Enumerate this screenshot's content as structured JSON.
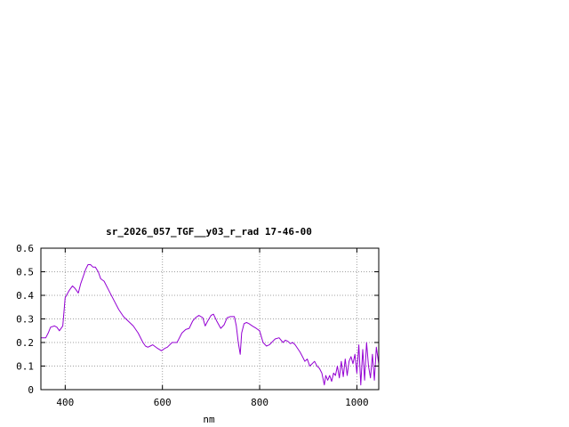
{
  "chart_data": {
    "type": "line",
    "title": "sr_2026_057_TGF__y03_r_rad 17-46-00",
    "xlabel": "nm",
    "ylabel": "",
    "xlim": [
      350,
      1045
    ],
    "ylim": [
      0,
      0.6
    ],
    "x_ticks": [
      400,
      600,
      800,
      1000
    ],
    "x_tick_labels": [
      "400",
      "600",
      "800",
      "1000"
    ],
    "y_ticks": [
      0,
      0.1,
      0.2,
      0.3,
      0.4,
      0.5,
      0.6
    ],
    "y_tick_labels": [
      "0",
      "0.1",
      "0.2",
      "0.3",
      "0.4",
      "0.5",
      "0.6"
    ],
    "grid": true,
    "line_color": "#9400d3",
    "series": [
      {
        "name": "",
        "x": [
          350,
          360,
          365,
          370,
          378,
          383,
          388,
          395,
          400,
          408,
          415,
          420,
          427,
          432,
          437,
          442,
          447,
          452,
          457,
          462,
          468,
          473,
          480,
          490,
          500,
          510,
          520,
          530,
          540,
          550,
          560,
          565,
          570,
          575,
          580,
          590,
          598,
          605,
          610,
          620,
          630,
          640,
          648,
          655,
          662,
          668,
          675,
          683,
          688,
          693,
          700,
          705,
          712,
          720,
          727,
          733,
          740,
          748,
          752,
          756,
          760,
          763,
          768,
          773,
          778,
          785,
          793,
          800,
          807,
          814,
          820,
          827,
          832,
          840,
          848,
          853,
          858,
          863,
          868,
          873,
          878,
          883,
          888,
          893,
          898,
          903,
          908,
          913,
          918,
          923,
          928,
          933,
          936,
          940,
          944,
          948,
          952,
          956,
          960,
          964,
          968,
          972,
          976,
          980,
          984,
          988,
          992,
          996,
          1000,
          1004,
          1008,
          1012,
          1016,
          1020,
          1024,
          1028,
          1032,
          1036,
          1040,
          1045
        ],
        "y": [
          0.22,
          0.22,
          0.24,
          0.265,
          0.27,
          0.265,
          0.25,
          0.27,
          0.39,
          0.42,
          0.44,
          0.43,
          0.41,
          0.45,
          0.48,
          0.51,
          0.53,
          0.53,
          0.52,
          0.52,
          0.5,
          0.47,
          0.46,
          0.42,
          0.38,
          0.34,
          0.31,
          0.29,
          0.27,
          0.24,
          0.2,
          0.185,
          0.18,
          0.185,
          0.19,
          0.175,
          0.165,
          0.175,
          0.18,
          0.2,
          0.2,
          0.24,
          0.255,
          0.26,
          0.29,
          0.305,
          0.315,
          0.305,
          0.27,
          0.29,
          0.315,
          0.32,
          0.29,
          0.26,
          0.275,
          0.305,
          0.31,
          0.31,
          0.27,
          0.2,
          0.15,
          0.24,
          0.28,
          0.285,
          0.28,
          0.27,
          0.26,
          0.25,
          0.2,
          0.185,
          0.19,
          0.205,
          0.215,
          0.22,
          0.2,
          0.21,
          0.205,
          0.195,
          0.2,
          0.19,
          0.175,
          0.16,
          0.14,
          0.12,
          0.13,
          0.1,
          0.11,
          0.12,
          0.1,
          0.09,
          0.07,
          0.02,
          0.06,
          0.04,
          0.06,
          0.035,
          0.07,
          0.06,
          0.1,
          0.05,
          0.12,
          0.055,
          0.13,
          0.06,
          0.12,
          0.14,
          0.11,
          0.15,
          0.07,
          0.19,
          0.02,
          0.17,
          0.04,
          0.2,
          0.1,
          0.05,
          0.15,
          0.04,
          0.18,
          0.11
        ]
      }
    ]
  }
}
